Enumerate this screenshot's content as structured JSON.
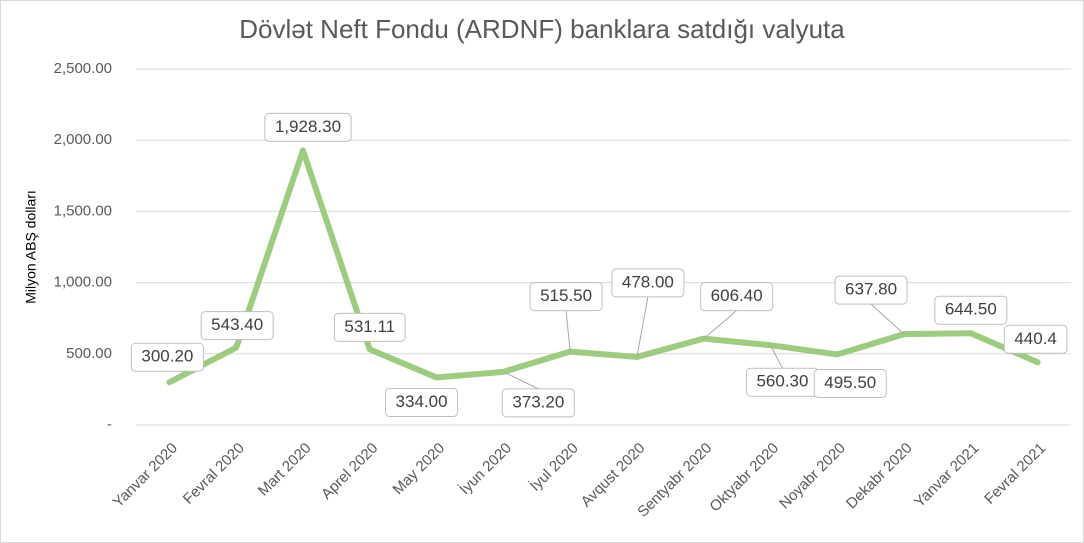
{
  "chart_data": {
    "type": "line",
    "title": "Dövlət Neft Fondu (ARDNF) banklara satdığı valyuta",
    "y_label": "Milyon ABŞ dolları",
    "categories": [
      "Yanvar 2020",
      "Fevral 2020",
      "Mart 2020",
      "Aprel 2020",
      "May 2020",
      "İyun 2020",
      "İyul 2020",
      "Avqust 2020",
      "Sentyabr 2020",
      "Oktyabr 2020",
      "Noyabr 2020",
      "Dekabr 2020",
      "Yanvar 2021",
      "Fevral 2021"
    ],
    "series": [
      {
        "color": "#9dcc7e",
        "values": [
          300.2,
          543.4,
          1928.3,
          531.11,
          334,
          373.2,
          515.5,
          478,
          606.4,
          560.3,
          495.5,
          637.8,
          644.5,
          440.4
        ],
        "value_labels": [
          "300.20",
          "543.40",
          "1,928.30",
          "531.11",
          "334.00",
          "373.20",
          "515.50",
          "478.00",
          "606.40",
          "560.30",
          "495.50",
          "637.80",
          "644.50",
          "440.4"
        ]
      }
    ],
    "ylim": [
      0,
      2500
    ],
    "yticks": [
      {
        "value": 0,
        "label": "-"
      },
      {
        "value": 500,
        "label": "500.00"
      },
      {
        "value": 1000,
        "label": "1,000.00"
      },
      {
        "value": 1500,
        "label": "1,500.00"
      },
      {
        "value": 2000,
        "label": "2,000.00"
      },
      {
        "value": 2500,
        "label": "2,500.00"
      }
    ],
    "grid": true
  }
}
